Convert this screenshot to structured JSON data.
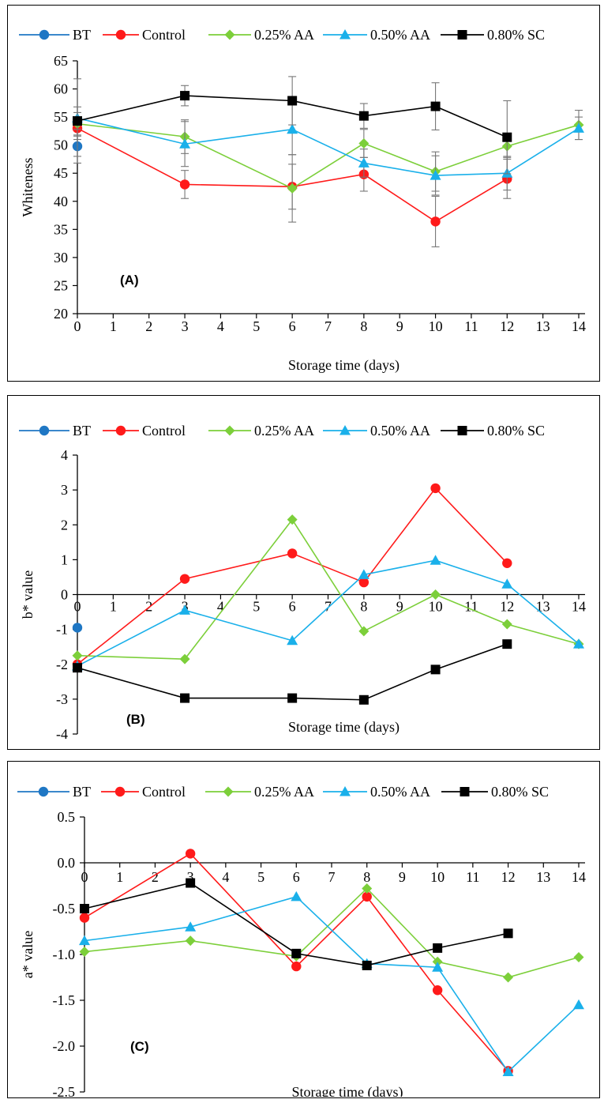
{
  "chart_data": [
    {
      "type": "line",
      "panel_label": "(A)",
      "xlabel": "Storage time (days)",
      "ylabel": "Whiteness",
      "xlim": [
        0,
        14
      ],
      "ylim": [
        20,
        65
      ],
      "xticks": [
        "0",
        "1",
        "2",
        "3",
        "4",
        "5",
        "6",
        "7",
        "8",
        "9",
        "10",
        "11",
        "12",
        "13",
        "14"
      ],
      "yticks": [
        "20",
        "25",
        "30",
        "35",
        "40",
        "45",
        "50",
        "55",
        "60",
        "65"
      ],
      "legend_position": "top",
      "grid": false,
      "series": [
        {
          "name": "BT",
          "color": "#1f77c4",
          "marker": "circle",
          "x": [
            0
          ],
          "y": [
            49.8
          ],
          "err": [
            1.8
          ]
        },
        {
          "name": "Control",
          "color": "#ff1a1a",
          "marker": "circle",
          "x": [
            0,
            3,
            6,
            8,
            10,
            12
          ],
          "y": [
            53.0,
            43.0,
            42.6,
            44.8,
            36.4,
            44.0
          ],
          "err": [
            2.0,
            2.5,
            4.0,
            3.0,
            4.5,
            3.5
          ]
        },
        {
          "name": "0.25% AA",
          "color": "#7ccf3a",
          "marker": "diamond",
          "x": [
            0,
            3,
            6,
            8,
            10,
            12,
            14
          ],
          "y": [
            53.8,
            51.5,
            42.3,
            50.3,
            45.3,
            49.8,
            53.6
          ],
          "err": [
            2.0,
            3.0,
            6.0,
            2.5,
            3.5,
            2.0,
            2.6
          ]
        },
        {
          "name": "0.50% AA",
          "color": "#1ab0ea",
          "marker": "triangle",
          "x": [
            0,
            3,
            6,
            8,
            10,
            12,
            14
          ],
          "y": [
            54.8,
            50.2,
            52.8,
            46.8,
            44.6,
            45.0,
            53.0
          ],
          "err": [
            2.0,
            4.0,
            4.5,
            2.5,
            3.5,
            3.0,
            2.0
          ]
        },
        {
          "name": "0.80% SC",
          "color": "#000000",
          "marker": "square",
          "x": [
            0,
            3,
            6,
            8,
            10,
            12
          ],
          "y": [
            54.3,
            58.8,
            57.9,
            55.2,
            56.9,
            51.4
          ],
          "err": [
            7.5,
            1.8,
            4.3,
            2.2,
            4.2,
            6.5
          ]
        }
      ]
    },
    {
      "type": "line",
      "panel_label": "(B)",
      "xlabel": "Storage time (days)",
      "ylabel": "b* value",
      "xlim": [
        0,
        14
      ],
      "ylim": [
        -4,
        4
      ],
      "xticks": [
        "0",
        "1",
        "2",
        "3",
        "4",
        "5",
        "6",
        "7",
        "8",
        "9",
        "10",
        "11",
        "12",
        "13",
        "14"
      ],
      "yticks": [
        "-4",
        "-3",
        "-2",
        "-1",
        "0",
        "1",
        "2",
        "3",
        "4"
      ],
      "legend_position": "top",
      "grid": false,
      "series": [
        {
          "name": "BT",
          "color": "#1f77c4",
          "marker": "circle",
          "x": [
            0
          ],
          "y": [
            -0.95
          ]
        },
        {
          "name": "Control",
          "color": "#ff1a1a",
          "marker": "circle",
          "x": [
            0,
            3,
            6,
            8,
            10,
            12
          ],
          "y": [
            -2.0,
            0.45,
            1.18,
            0.35,
            3.05,
            0.9
          ]
        },
        {
          "name": "0.25% AA",
          "color": "#7ccf3a",
          "marker": "diamond",
          "x": [
            0,
            3,
            6,
            8,
            10,
            12,
            14
          ],
          "y": [
            -1.75,
            -1.85,
            2.15,
            -1.05,
            0.0,
            -0.85,
            -1.42
          ]
        },
        {
          "name": "0.50% AA",
          "color": "#1ab0ea",
          "marker": "triangle",
          "x": [
            0,
            3,
            6,
            8,
            10,
            12,
            14
          ],
          "y": [
            -2.05,
            -0.45,
            -1.32,
            0.57,
            0.98,
            0.3,
            -1.42
          ]
        },
        {
          "name": "0.80% SC",
          "color": "#000000",
          "marker": "square",
          "x": [
            0,
            3,
            6,
            8,
            10,
            12
          ],
          "y": [
            -2.1,
            -2.97,
            -2.97,
            -3.02,
            -2.15,
            -1.42
          ]
        }
      ]
    },
    {
      "type": "line",
      "panel_label": "(C)",
      "xlabel": "Storage time (days)",
      "ylabel": "a* value",
      "xlim": [
        0,
        14
      ],
      "ylim": [
        -2.5,
        0.5
      ],
      "xticks": [
        "0",
        "1",
        "2",
        "3",
        "4",
        "5",
        "6",
        "7",
        "8",
        "9",
        "10",
        "11",
        "12",
        "13",
        "14"
      ],
      "yticks": [
        "-2.5",
        "-2.0",
        "-1.5",
        "-1.0",
        "-0.5",
        "0.0",
        "0.5"
      ],
      "legend_position": "top",
      "grid": false,
      "series": [
        {
          "name": "BT",
          "color": "#1f77c4",
          "marker": "circle",
          "x": [],
          "y": []
        },
        {
          "name": "Control",
          "color": "#ff1a1a",
          "marker": "circle",
          "x": [
            0,
            3,
            6,
            8,
            10,
            12
          ],
          "y": [
            -0.6,
            0.1,
            -1.13,
            -0.37,
            -1.39,
            -2.27
          ]
        },
        {
          "name": "0.25% AA",
          "color": "#7ccf3a",
          "marker": "diamond",
          "x": [
            0,
            3,
            6,
            8,
            10,
            12,
            14
          ],
          "y": [
            -0.97,
            -0.85,
            -1.02,
            -0.28,
            -1.08,
            -1.25,
            -1.03
          ]
        },
        {
          "name": "0.50% AA",
          "color": "#1ab0ea",
          "marker": "triangle",
          "x": [
            0,
            3,
            6,
            8,
            10,
            12,
            14
          ],
          "y": [
            -0.85,
            -0.7,
            -0.37,
            -1.1,
            -1.14,
            -2.28,
            -1.55
          ]
        },
        {
          "name": "0.80% SC",
          "color": "#000000",
          "marker": "square",
          "x": [
            0,
            3,
            6,
            8,
            10,
            12
          ],
          "y": [
            -0.5,
            -0.22,
            -0.99,
            -1.12,
            -0.93,
            -0.77
          ]
        }
      ]
    }
  ]
}
